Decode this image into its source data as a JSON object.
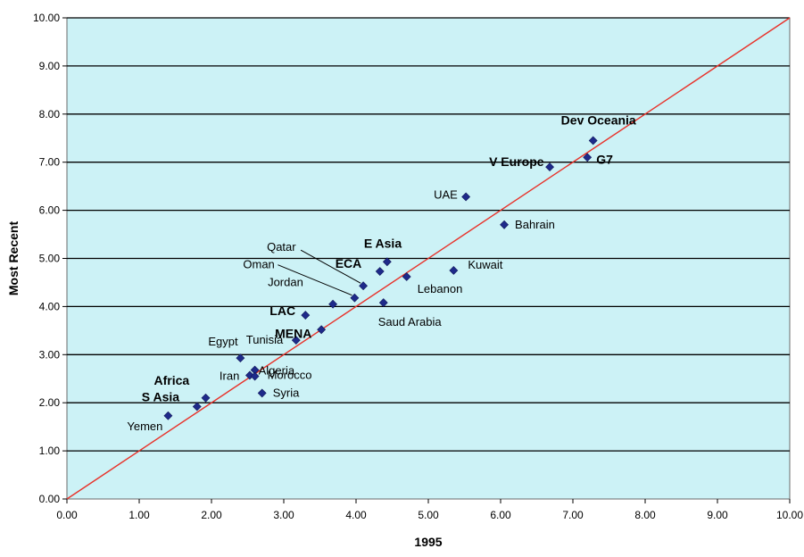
{
  "chart_data": {
    "type": "scatter",
    "xlabel": "1995",
    "ylabel": "Most Recent",
    "xlim": [
      0,
      10
    ],
    "ylim": [
      0,
      10
    ],
    "x_ticks": [
      "0.00",
      "1.00",
      "2.00",
      "3.00",
      "4.00",
      "5.00",
      "6.00",
      "7.00",
      "8.00",
      "9.00",
      "10.00"
    ],
    "y_ticks": [
      "0.00",
      "1.00",
      "2.00",
      "3.00",
      "4.00",
      "5.00",
      "6.00",
      "7.00",
      "8.00",
      "9.00",
      "10.00"
    ],
    "grid": "horizontal",
    "reference_line": {
      "from": [
        0,
        0
      ],
      "to": [
        10,
        10
      ],
      "color": "#e8322a"
    },
    "colors": {
      "plot_bg": "#ccf2f6",
      "marker": "#1e2a8a",
      "gridline": "#000000",
      "highlight_label": "#ff2a1a"
    },
    "points": [
      {
        "label": "Dev Oceania",
        "x": 7.28,
        "y": 7.45,
        "bold": true
      },
      {
        "label": "G7",
        "x": 7.2,
        "y": 7.1,
        "bold": true
      },
      {
        "label": "V Europe",
        "x": 6.68,
        "y": 6.9,
        "bold": true
      },
      {
        "label": "UAE",
        "x": 5.52,
        "y": 6.28,
        "bold": false
      },
      {
        "label": "Bahrain",
        "x": 6.05,
        "y": 5.7,
        "bold": false
      },
      {
        "label": "Kuwait",
        "x": 5.35,
        "y": 4.75,
        "bold": false
      },
      {
        "label": "E Asia",
        "x": 4.43,
        "y": 4.93,
        "bold": true
      },
      {
        "label": "ECA",
        "x": 4.33,
        "y": 4.73,
        "bold": true
      },
      {
        "label": "Lebanon",
        "x": 4.7,
        "y": 4.62,
        "bold": false
      },
      {
        "label": "Qatar",
        "x": 4.1,
        "y": 4.43,
        "bold": false
      },
      {
        "label": "Oman",
        "x": 3.98,
        "y": 4.18,
        "bold": false
      },
      {
        "label": "Jordan",
        "x": 3.68,
        "y": 4.05,
        "bold": false
      },
      {
        "label": "Saud Arabia",
        "x": 4.38,
        "y": 4.08,
        "bold": false
      },
      {
        "label": "LAC",
        "x": 3.3,
        "y": 3.82,
        "bold": true
      },
      {
        "label": "MENA",
        "x": 3.52,
        "y": 3.52,
        "bold": true,
        "highlight": true
      },
      {
        "label": "Tunisia",
        "x": 3.17,
        "y": 3.3,
        "bold": false
      },
      {
        "label": "Egypt",
        "x": 2.4,
        "y": 2.93,
        "bold": false
      },
      {
        "label": "Algeria",
        "x": 2.6,
        "y": 2.68,
        "bold": false
      },
      {
        "label": "Iran",
        "x": 2.53,
        "y": 2.57,
        "bold": false
      },
      {
        "label": "Morocco",
        "x": 2.6,
        "y": 2.55,
        "bold": false
      },
      {
        "label": "Syria",
        "x": 2.7,
        "y": 2.2,
        "bold": false
      },
      {
        "label": "Africa",
        "x": 1.92,
        "y": 2.1,
        "bold": true
      },
      {
        "label": "S Asia",
        "x": 1.8,
        "y": 1.92,
        "bold": true
      },
      {
        "label": "Yemen",
        "x": 1.4,
        "y": 1.73,
        "bold": false
      }
    ]
  }
}
